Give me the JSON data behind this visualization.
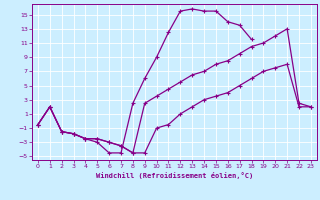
{
  "xlabel": "Windchill (Refroidissement éolien,°C)",
  "bg_color": "#cceeff",
  "grid_color": "#aaddcc",
  "line_color": "#880088",
  "xlim": [
    -0.5,
    23.5
  ],
  "ylim": [
    -5.5,
    16.5
  ],
  "xticks": [
    0,
    1,
    2,
    3,
    4,
    5,
    6,
    7,
    8,
    9,
    10,
    11,
    12,
    13,
    14,
    15,
    16,
    17,
    18,
    19,
    20,
    21,
    22,
    23
  ],
  "yticks": [
    -5,
    -3,
    -1,
    1,
    3,
    5,
    7,
    9,
    11,
    13,
    15
  ],
  "line1_x": [
    0,
    1,
    2,
    3,
    4,
    5,
    6,
    7,
    8,
    9,
    10,
    11,
    12,
    13,
    14,
    15,
    16,
    17,
    18
  ],
  "line1_y": [
    -0.5,
    2.0,
    -1.5,
    -1.8,
    -2.5,
    -3.0,
    -4.5,
    -4.5,
    2.5,
    6.0,
    9.0,
    12.5,
    15.5,
    15.8,
    15.5,
    15.5,
    14.0,
    13.5,
    11.5
  ],
  "line2_x": [
    0,
    1,
    2,
    3,
    4,
    5,
    6,
    7,
    8,
    9,
    10,
    11,
    12,
    13,
    14,
    15,
    16,
    17,
    18,
    19,
    20,
    21,
    22,
    23
  ],
  "line2_y": [
    -0.5,
    2.0,
    -1.5,
    -1.8,
    -2.5,
    -2.5,
    -3.0,
    -3.5,
    -4.5,
    -4.5,
    -1.0,
    -0.5,
    1.0,
    2.0,
    3.0,
    3.5,
    4.0,
    5.0,
    6.0,
    7.0,
    7.5,
    8.0,
    2.0,
    2.0
  ],
  "line3_x": [
    0,
    1,
    2,
    3,
    4,
    5,
    6,
    7,
    8,
    9,
    10,
    11,
    12,
    13,
    14,
    15,
    16,
    17,
    18,
    19,
    20,
    21,
    22,
    23
  ],
  "line3_y": [
    -0.5,
    2.0,
    -1.5,
    -1.8,
    -2.5,
    -2.5,
    -3.0,
    -3.5,
    -4.5,
    2.5,
    3.5,
    4.5,
    5.5,
    6.5,
    7.0,
    8.0,
    8.5,
    9.5,
    10.5,
    11.0,
    12.0,
    13.0,
    2.5,
    2.0
  ]
}
